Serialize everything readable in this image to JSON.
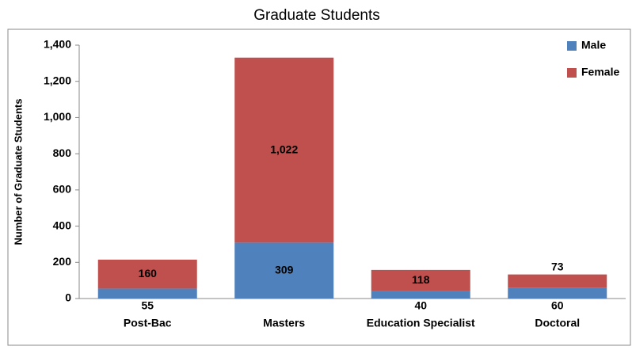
{
  "chart_data": {
    "type": "stacked_bar",
    "title": "Graduate  Students",
    "y_label": "Number of Graduate Students",
    "categories": [
      "Post-Bac",
      "Masters",
      "Education Specialist",
      "Doctoral"
    ],
    "series": [
      {
        "name": "Male",
        "color": "#4f81bd",
        "values": [
          55,
          309,
          40,
          60
        ]
      },
      {
        "name": "Female",
        "color": "#c0504d",
        "values": [
          160,
          1022,
          118,
          73
        ],
        "value_labels": [
          "160",
          "1,022",
          "118",
          "73"
        ]
      }
    ],
    "ylim": [
      0,
      1400
    ],
    "yticks": [
      0,
      200,
      400,
      600,
      800,
      {
        "value": 1000,
        "label": "1,000"
      },
      {
        "value": 1200,
        "label": "1,200"
      },
      {
        "value": 1400,
        "label": "1,400"
      }
    ],
    "legend": "top-right"
  }
}
